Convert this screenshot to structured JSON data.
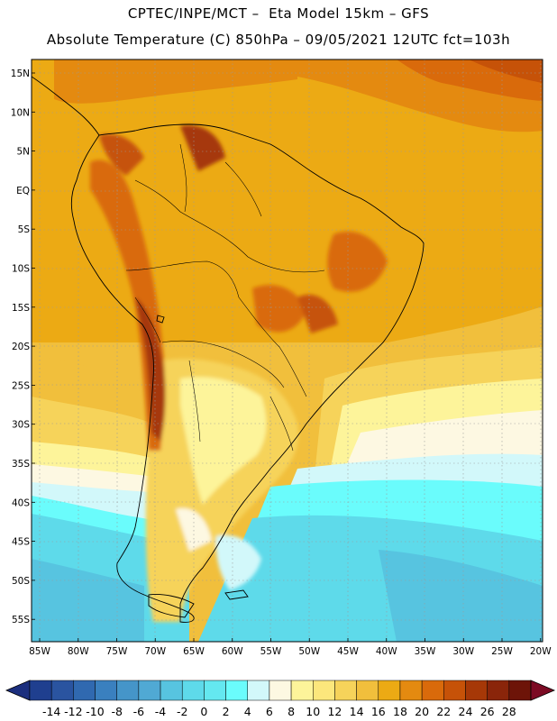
{
  "header": {
    "line1": "CPTEC/INPE/MCT –  Eta Model 15km – GFS",
    "line2": "Absolute Temperature (C) 850hPa – 09/05/2021 12UTC fct=103h"
  },
  "axes": {
    "lat_labels": [
      "15N",
      "10N",
      "5N",
      "EQ",
      "5S",
      "10S",
      "15S",
      "20S",
      "25S",
      "30S",
      "35S",
      "40S",
      "45S",
      "50S",
      "55S"
    ],
    "lon_labels": [
      "85W",
      "80W",
      "75W",
      "70W",
      "65W",
      "60W",
      "55W",
      "50W",
      "45W",
      "40W",
      "35W",
      "30W",
      "25W",
      "20W"
    ]
  },
  "colorbar": {
    "labels": [
      "-14",
      "-12",
      "-10",
      "-8",
      "-6",
      "-4",
      "-2",
      "0",
      "2",
      "4",
      "6",
      "8",
      "10",
      "12",
      "14",
      "16",
      "18",
      "20",
      "22",
      "24",
      "26",
      "28"
    ],
    "colors": [
      "#1f3f8f",
      "#2a54a0",
      "#3069b0",
      "#3a80bf",
      "#4595c9",
      "#50a9d4",
      "#57c4e0",
      "#5edaea",
      "#64e8f0",
      "#6afcfc",
      "#d2f8fa",
      "#fdf8e2",
      "#fdf49a",
      "#fce77c",
      "#f6d35a",
      "#f1bf3c",
      "#ecaa14",
      "#e48a10",
      "#d96a0b",
      "#c65208",
      "#a63807",
      "#8a250a",
      "#6d1408"
    ],
    "under_color": "#1c2f7e",
    "over_color": "#7c0b24"
  }
}
